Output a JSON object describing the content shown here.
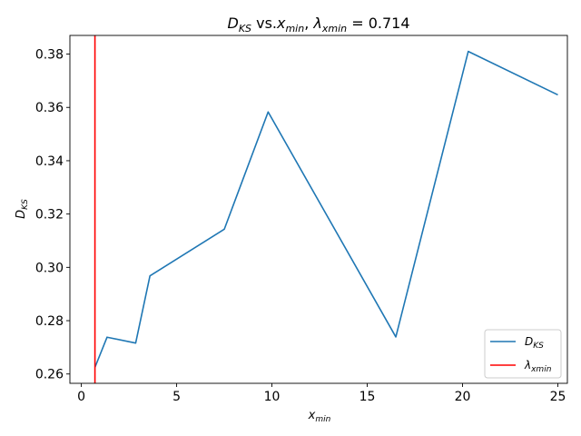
{
  "chart_data": {
    "type": "line",
    "title": {
      "prefix": "D",
      "prefix_sub": "KS",
      "middle": " vs.",
      "x": "x",
      "x_sub": "min",
      "comma": ", ",
      "lambda": "λ",
      "lambda_sub": "xmin",
      "eq": " = 0.714"
    },
    "xlabel": {
      "main": "x",
      "sub": "min"
    },
    "ylabel": {
      "main": "D",
      "sub": "KS"
    },
    "xlim": [
      -0.6,
      25.5
    ],
    "ylim": [
      0.2565,
      0.387
    ],
    "xticks": [
      0,
      5,
      10,
      15,
      20,
      25
    ],
    "xtick_labels": [
      "0",
      "5",
      "10",
      "15",
      "20",
      "25"
    ],
    "yticks": [
      0.26,
      0.28,
      0.3,
      0.32,
      0.34,
      0.36,
      0.38
    ],
    "ytick_labels": [
      "0.26",
      "0.28",
      "0.30",
      "0.32",
      "0.34",
      "0.36",
      "0.38"
    ],
    "grid": false,
    "legend_position": "bottom-right",
    "series": [
      {
        "name": "D_KS",
        "color": "#1f77b4",
        "x": [
          0.714,
          1.35,
          2.85,
          3.6,
          7.5,
          9.8,
          16.5,
          20.3,
          25.0
        ],
        "y": [
          0.2625,
          0.2738,
          0.2716,
          0.2968,
          0.3143,
          0.3583,
          0.2739,
          0.381,
          0.3647
        ]
      }
    ],
    "vline": {
      "name": "λ_xmin",
      "x": 0.714,
      "color": "#ff0000"
    },
    "legend": [
      {
        "main": "D",
        "sub": "KS",
        "color": "#1f77b4"
      },
      {
        "main": "λ",
        "sub": "xmin",
        "color": "#ff0000"
      }
    ]
  }
}
